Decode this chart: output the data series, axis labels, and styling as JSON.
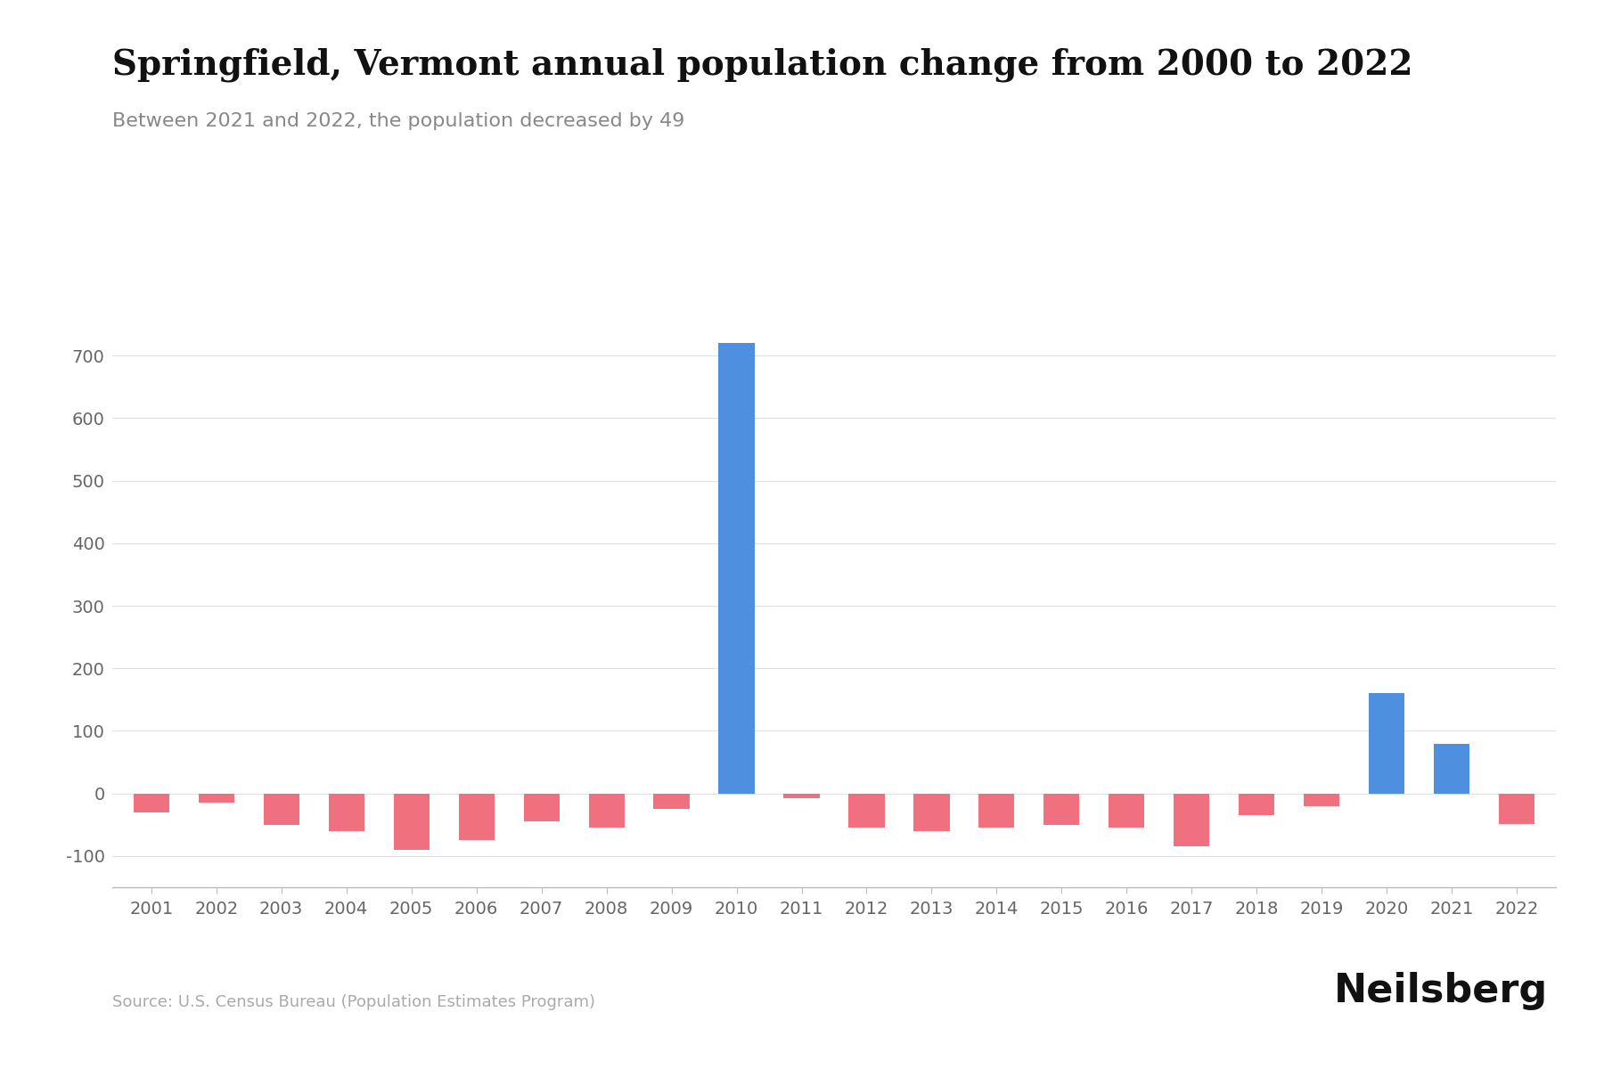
{
  "title": "Springfield, Vermont annual population change from 2000 to 2022",
  "subtitle": "Between 2021 and 2022, the population decreased by 49",
  "source": "Source: U.S. Census Bureau (Population Estimates Program)",
  "branding": "Neilsberg",
  "years": [
    2001,
    2002,
    2003,
    2004,
    2005,
    2006,
    2007,
    2008,
    2009,
    2010,
    2011,
    2012,
    2013,
    2014,
    2015,
    2016,
    2017,
    2018,
    2019,
    2020,
    2021,
    2022
  ],
  "values": [
    -30,
    -15,
    -50,
    -60,
    -90,
    -75,
    -45,
    -55,
    -25,
    720,
    -8,
    -55,
    -60,
    -55,
    -50,
    -55,
    -85,
    -35,
    -20,
    160,
    80,
    -49
  ],
  "positive_color": "#4F8FE0",
  "negative_color": "#F07080",
  "background_color": "#ffffff",
  "title_fontsize": 28,
  "subtitle_fontsize": 16,
  "tick_fontsize": 14,
  "source_fontsize": 13,
  "branding_fontsize": 32,
  "ylim": [
    -150,
    790
  ],
  "yticks": [
    -100,
    0,
    100,
    200,
    300,
    400,
    500,
    600,
    700
  ],
  "grid_color": "#e0e0e0"
}
